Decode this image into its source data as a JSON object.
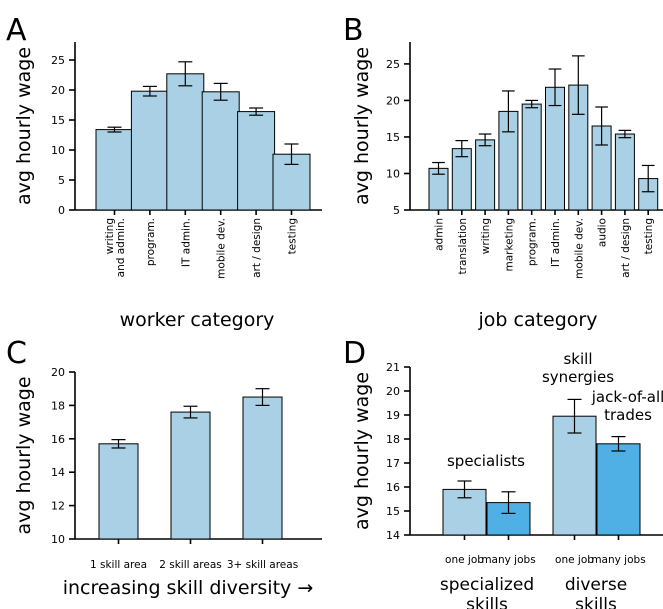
{
  "colors": {
    "light_bar": "#a9d0e4",
    "dark_bar": "#4fb0e6",
    "axis": "#000000"
  },
  "chart_data": [
    {
      "panel": "A",
      "type": "bar",
      "ylabel": "avg hourly wage",
      "xlabel": "worker category",
      "ylim": [
        0,
        28
      ],
      "yticks": [
        0,
        5,
        10,
        15,
        20,
        25
      ],
      "categories": [
        "writing\nand admin.",
        "program.",
        "IT admin.",
        "mobile dev.",
        "art / design",
        "testing"
      ],
      "values": [
        13.4,
        19.8,
        22.7,
        19.7,
        16.4,
        9.3
      ],
      "errors": [
        0.4,
        0.8,
        2.0,
        1.4,
        0.6,
        1.7
      ]
    },
    {
      "panel": "B",
      "type": "bar",
      "ylabel": "avg hourly wage",
      "xlabel": "job category",
      "ylim": [
        5,
        28
      ],
      "yticks": [
        5,
        10,
        15,
        20,
        25
      ],
      "categories": [
        "admin",
        "translation",
        "writing",
        "marketing",
        "program.",
        "IT admin.",
        "mobile dev.",
        "audio",
        "art / design",
        "testing"
      ],
      "values": [
        10.7,
        13.4,
        14.6,
        18.5,
        19.5,
        21.8,
        22.1,
        16.5,
        15.4,
        9.3
      ],
      "errors": [
        0.8,
        1.1,
        0.8,
        2.8,
        0.5,
        2.5,
        4.0,
        2.6,
        0.5,
        1.8
      ]
    },
    {
      "panel": "C",
      "type": "bar",
      "ylabel": "avg hourly wage",
      "xlabel": "increasing skill diversity →",
      "ylim": [
        10,
        20
      ],
      "yticks": [
        10,
        12,
        14,
        16,
        18,
        20
      ],
      "categories": [
        "1 skill area",
        "2 skill areas",
        "3+ skill areas"
      ],
      "values": [
        15.7,
        17.6,
        18.5
      ],
      "errors": [
        0.25,
        0.35,
        0.5
      ]
    },
    {
      "panel": "D",
      "type": "bar",
      "ylabel": "avg hourly wage",
      "ylim": [
        14,
        21
      ],
      "yticks": [
        14,
        15,
        16,
        17,
        18,
        19,
        20,
        21
      ],
      "categories": [
        "one job",
        "many jobs",
        "one job",
        "many jobs"
      ],
      "groups": [
        "specialized\nskills",
        "diverse\nskills"
      ],
      "values": [
        15.9,
        15.35,
        18.95,
        17.8
      ],
      "errors": [
        0.35,
        0.45,
        0.7,
        0.3
      ],
      "annotations": [
        "specialists",
        "skill\nsynergies",
        "jack-of-all\ntrades"
      ]
    }
  ]
}
